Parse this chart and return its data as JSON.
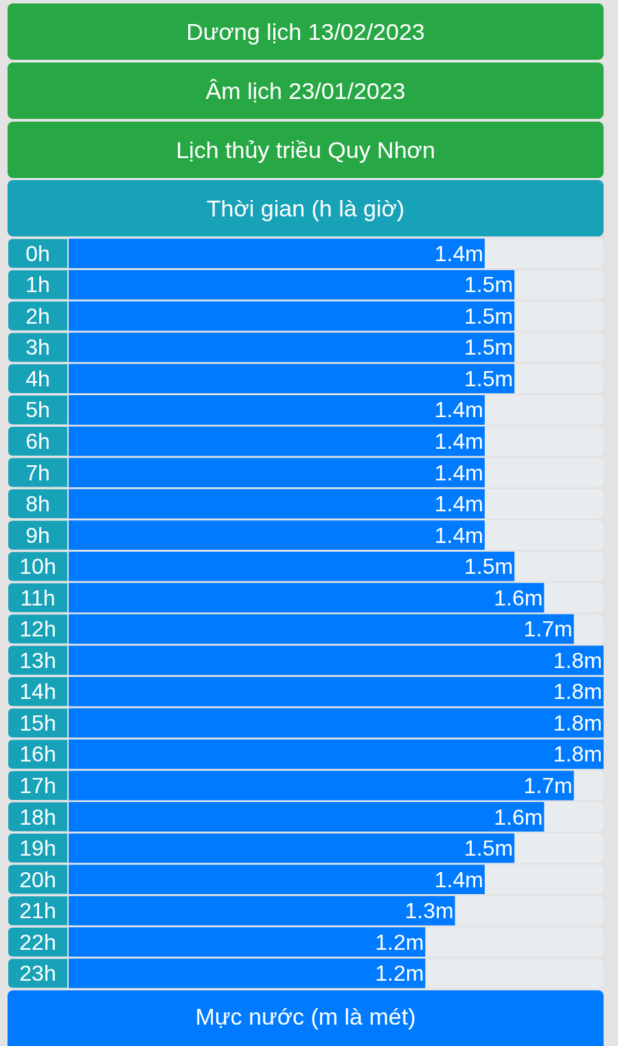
{
  "chart_data": {
    "type": "bar",
    "orientation": "horizontal",
    "title": "Lịch thủy triều Quy Nhơn",
    "annotations": [
      "Dương lịch 13/02/2023",
      "Âm lịch 23/01/2023"
    ],
    "ylabel": "Thời gian (h là giờ)",
    "xlabel": "Mực nước (m là mét)",
    "categories": [
      "0h",
      "1h",
      "2h",
      "3h",
      "4h",
      "5h",
      "6h",
      "7h",
      "8h",
      "9h",
      "10h",
      "11h",
      "12h",
      "13h",
      "14h",
      "15h",
      "16h",
      "17h",
      "18h",
      "19h",
      "20h",
      "21h",
      "22h",
      "23h"
    ],
    "values": [
      1.4,
      1.5,
      1.5,
      1.5,
      1.5,
      1.4,
      1.4,
      1.4,
      1.4,
      1.4,
      1.5,
      1.6,
      1.7,
      1.8,
      1.8,
      1.8,
      1.8,
      1.7,
      1.6,
      1.5,
      1.4,
      1.3,
      1.2,
      1.2
    ],
    "value_labels": [
      "1.4m",
      "1.5m",
      "1.5m",
      "1.5m",
      "1.5m",
      "1.4m",
      "1.4m",
      "1.4m",
      "1.4m",
      "1.4m",
      "1.5m",
      "1.6m",
      "1.7m",
      "1.8m",
      "1.8m",
      "1.8m",
      "1.8m",
      "1.7m",
      "1.6m",
      "1.5m",
      "1.4m",
      "1.3m",
      "1.2m",
      "1.2m"
    ],
    "color": "#007bff",
    "grid": false
  }
}
